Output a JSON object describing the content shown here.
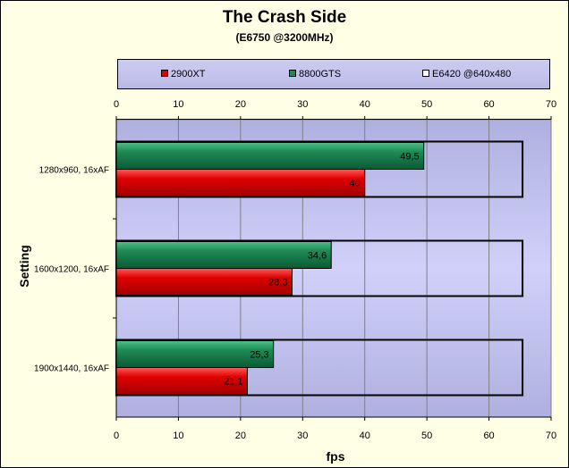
{
  "chart_data": {
    "type": "bar",
    "orientation": "horizontal",
    "title": "The Crash Side",
    "subtitle": "(E6750 @3200MHz)",
    "xlabel": "fps",
    "ylabel": "Setting",
    "xlim": [
      0,
      70
    ],
    "ticks": [
      0,
      10,
      20,
      30,
      40,
      50,
      60,
      70
    ],
    "tick_labels": [
      "0",
      "10",
      "20",
      "30",
      "40",
      "50",
      "60",
      "70"
    ],
    "categories": [
      "1280x960, 16xAF",
      "1600x1200, 16xAF",
      "1900x1440, 16xAF"
    ],
    "series": [
      {
        "name": "2900XT",
        "color": "#e00000",
        "values": [
          40,
          28.3,
          21.1
        ],
        "labels": [
          "40",
          "28,3",
          "21,1"
        ]
      },
      {
        "name": "8800GTS",
        "color": "#1e8a55",
        "values": [
          49.5,
          34.6,
          25.3
        ],
        "labels": [
          "49,5",
          "34,6",
          "25,3"
        ]
      }
    ],
    "reference": {
      "name": "E6420 @640x480",
      "value": 65.4,
      "style": "outline"
    },
    "legend_position": "top",
    "grid": true,
    "plot_background": "#c8c8f4"
  }
}
